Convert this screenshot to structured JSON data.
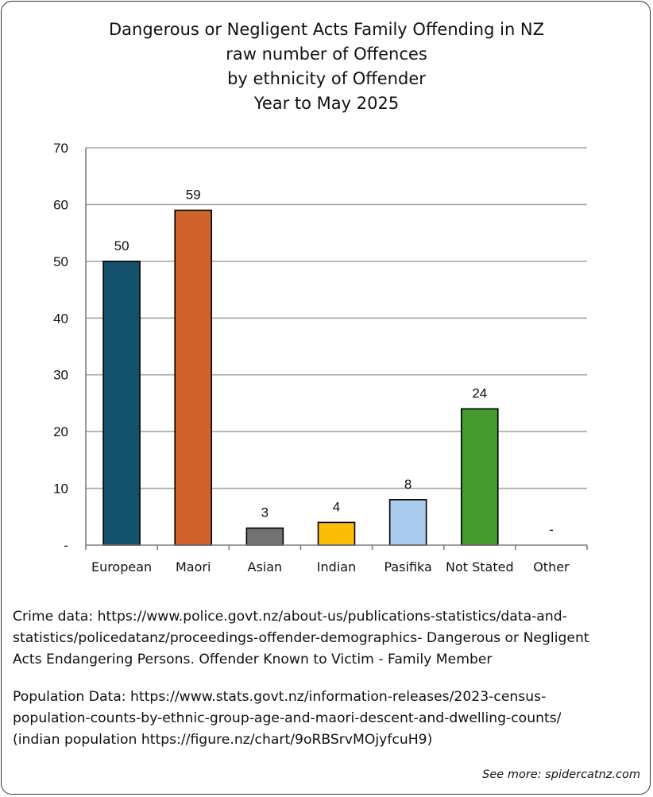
{
  "title_lines": [
    "Dangerous or Negligent Acts Family Offending in NZ",
    "raw number of Offences",
    "by ethnicity of Offender",
    "Year to May 2025"
  ],
  "chart_data": {
    "type": "bar",
    "title": "Dangerous or Negligent Acts Family Offending in NZ raw number of Offences by ethnicity of Offender Year to May 2025",
    "categories": [
      "European",
      "Maori",
      "Asian",
      "Indian",
      "Pasifika",
      "Not Stated",
      "Other"
    ],
    "values": [
      50,
      59,
      3,
      4,
      8,
      24,
      0
    ],
    "data_labels": [
      "50",
      "59",
      "3",
      "4",
      "8",
      "24",
      "-"
    ],
    "colors": [
      "#14516d",
      "#d0622b",
      "#727272",
      "#fbbd07",
      "#a9cbee",
      "#449a2d",
      "#ffffff"
    ],
    "ylim": [
      0,
      70
    ],
    "yticks": [
      0,
      10,
      20,
      30,
      40,
      50,
      60,
      70
    ],
    "ytick_labels": [
      "-",
      "10",
      "20",
      "30",
      "40",
      "50",
      "60",
      "70"
    ],
    "xlabel": "",
    "ylabel": "",
    "grid": true,
    "legend": "none"
  },
  "notes": {
    "crime_lines": [
      "Crime data: https://www.police.govt.nz/about-us/publications-statistics/data-and-",
      "statistics/policedatanz/proceedings-offender-demographics- Dangerous or Negligent",
      "Acts Endangering Persons. Offender Known to Victim - Family Member"
    ],
    "population_lines": [
      "Population Data: https://www.stats.govt.nz/information-releases/2023-census-",
      "population-counts-by-ethnic-group-age-and-maori-descent-and-dwelling-counts/",
      "(indian population https://figure.nz/chart/9oRBSrvMOjyfcuH9)"
    ]
  },
  "footer": "See more: spidercatnz.com"
}
